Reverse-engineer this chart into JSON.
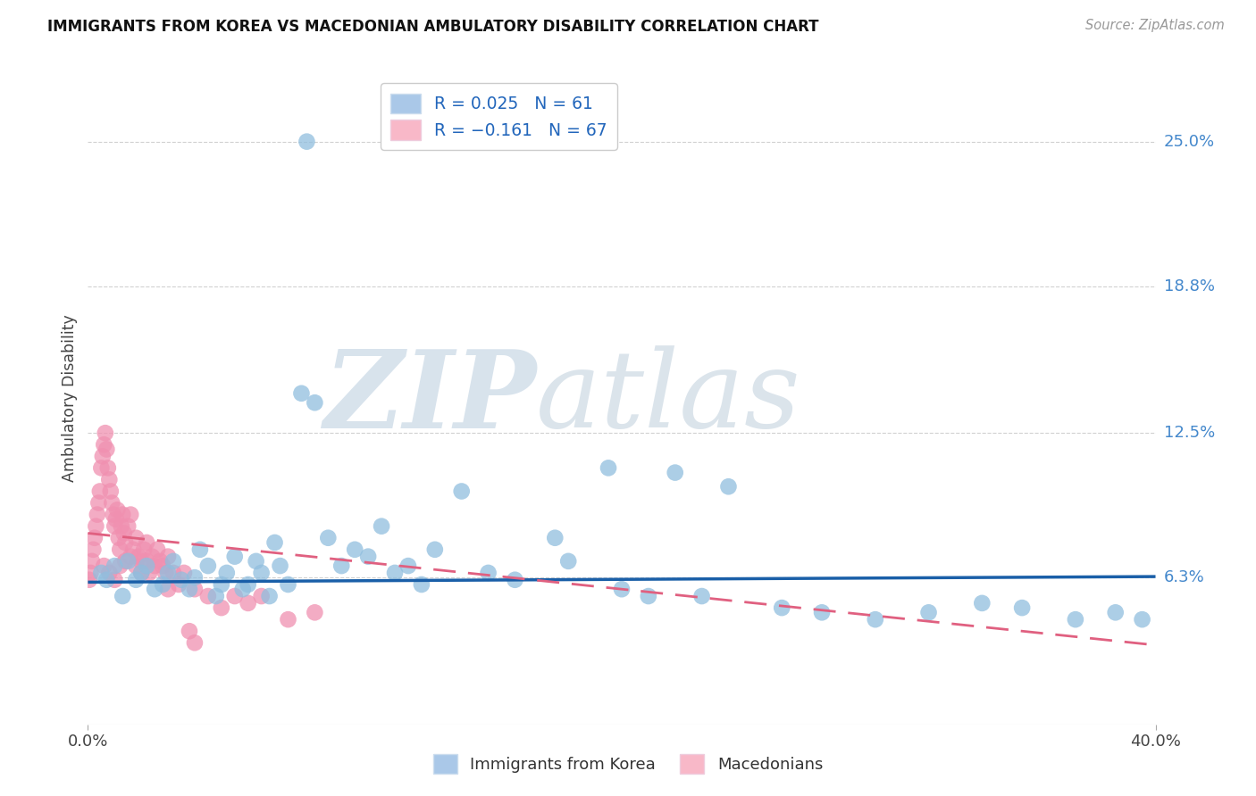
{
  "title": "IMMIGRANTS FROM KOREA VS MACEDONIAN AMBULATORY DISABILITY CORRELATION CHART",
  "source": "Source: ZipAtlas.com",
  "ylabel": "Ambulatory Disability",
  "right_yticks": [
    6.3,
    12.5,
    18.8,
    25.0
  ],
  "right_ytick_labels": [
    "6.3%",
    "12.5%",
    "18.8%",
    "25.0%"
  ],
  "legend_label1": "Immigrants from Korea",
  "legend_label2": "Macedonians",
  "blue_scatter_color": "#90bede",
  "pink_scatter_color": "#f090b0",
  "blue_line_color": "#1a5fa8",
  "pink_line_color": "#e06080",
  "watermark_zip_color": "#c0d4e8",
  "watermark_atlas_color": "#b8ccd8",
  "background_color": "#ffffff",
  "grid_color": "#cccccc",
  "title_color": "#111111",
  "source_color": "#999999",
  "right_label_color": "#4488cc",
  "x_min": 0.0,
  "x_max": 40.0,
  "y_min": 0.0,
  "y_max": 28.0,
  "blue_slope": 0.006,
  "blue_intercept": 6.1,
  "pink_slope": -0.12,
  "pink_intercept": 8.2,
  "blue_scatter_x": [
    8.2,
    0.5,
    0.7,
    1.0,
    1.3,
    1.5,
    1.8,
    2.0,
    2.2,
    2.5,
    2.8,
    3.0,
    3.2,
    3.5,
    3.8,
    4.0,
    4.2,
    4.5,
    4.8,
    5.0,
    5.2,
    5.5,
    5.8,
    6.0,
    6.3,
    6.5,
    6.8,
    7.0,
    7.2,
    7.5,
    8.0,
    8.5,
    9.0,
    9.5,
    10.0,
    10.5,
    11.0,
    11.5,
    12.0,
    12.5,
    13.0,
    14.0,
    15.0,
    16.0,
    17.5,
    18.0,
    20.0,
    21.0,
    22.0,
    23.0,
    24.0,
    26.0,
    27.5,
    29.5,
    31.5,
    33.5,
    35.0,
    37.0,
    38.5,
    39.5,
    19.5
  ],
  "blue_scatter_y": [
    25.0,
    6.5,
    6.2,
    6.8,
    5.5,
    7.0,
    6.2,
    6.5,
    6.8,
    5.8,
    6.0,
    6.5,
    7.0,
    6.2,
    5.8,
    6.3,
    7.5,
    6.8,
    5.5,
    6.0,
    6.5,
    7.2,
    5.8,
    6.0,
    7.0,
    6.5,
    5.5,
    7.8,
    6.8,
    6.0,
    14.2,
    13.8,
    8.0,
    6.8,
    7.5,
    7.2,
    8.5,
    6.5,
    6.8,
    6.0,
    7.5,
    10.0,
    6.5,
    6.2,
    8.0,
    7.0,
    5.8,
    5.5,
    10.8,
    5.5,
    10.2,
    5.0,
    4.8,
    4.5,
    4.8,
    5.2,
    5.0,
    4.5,
    4.8,
    4.5,
    11.0
  ],
  "pink_scatter_x": [
    0.05,
    0.1,
    0.15,
    0.2,
    0.25,
    0.3,
    0.35,
    0.4,
    0.45,
    0.5,
    0.55,
    0.6,
    0.65,
    0.7,
    0.75,
    0.8,
    0.85,
    0.9,
    0.95,
    1.0,
    1.05,
    1.1,
    1.15,
    1.2,
    1.25,
    1.3,
    1.35,
    1.4,
    1.5,
    1.6,
    1.7,
    1.8,
    1.9,
    2.0,
    2.1,
    2.2,
    2.3,
    2.4,
    2.5,
    2.6,
    2.7,
    2.8,
    2.9,
    3.0,
    3.2,
    3.4,
    3.6,
    3.8,
    4.0,
    4.5,
    5.0,
    5.5,
    6.0,
    6.5,
    7.5,
    8.5,
    0.6,
    0.8,
    1.0,
    1.2,
    1.4,
    1.6,
    1.8,
    2.0,
    2.2,
    3.0,
    4.0
  ],
  "pink_scatter_y": [
    6.2,
    6.5,
    7.0,
    7.5,
    8.0,
    8.5,
    9.0,
    9.5,
    10.0,
    11.0,
    11.5,
    12.0,
    12.5,
    11.8,
    11.0,
    10.5,
    10.0,
    9.5,
    9.0,
    8.5,
    8.8,
    9.2,
    8.0,
    7.5,
    8.5,
    9.0,
    8.2,
    7.8,
    8.5,
    9.0,
    7.5,
    8.0,
    7.2,
    7.0,
    7.5,
    7.8,
    6.5,
    7.2,
    6.8,
    7.5,
    7.0,
    6.8,
    6.5,
    7.2,
    6.5,
    6.0,
    6.5,
    4.0,
    5.8,
    5.5,
    5.0,
    5.5,
    5.2,
    5.5,
    4.5,
    4.8,
    6.8,
    6.5,
    6.2,
    6.8,
    7.0,
    7.2,
    6.8,
    6.5,
    7.0,
    5.8,
    3.5
  ]
}
